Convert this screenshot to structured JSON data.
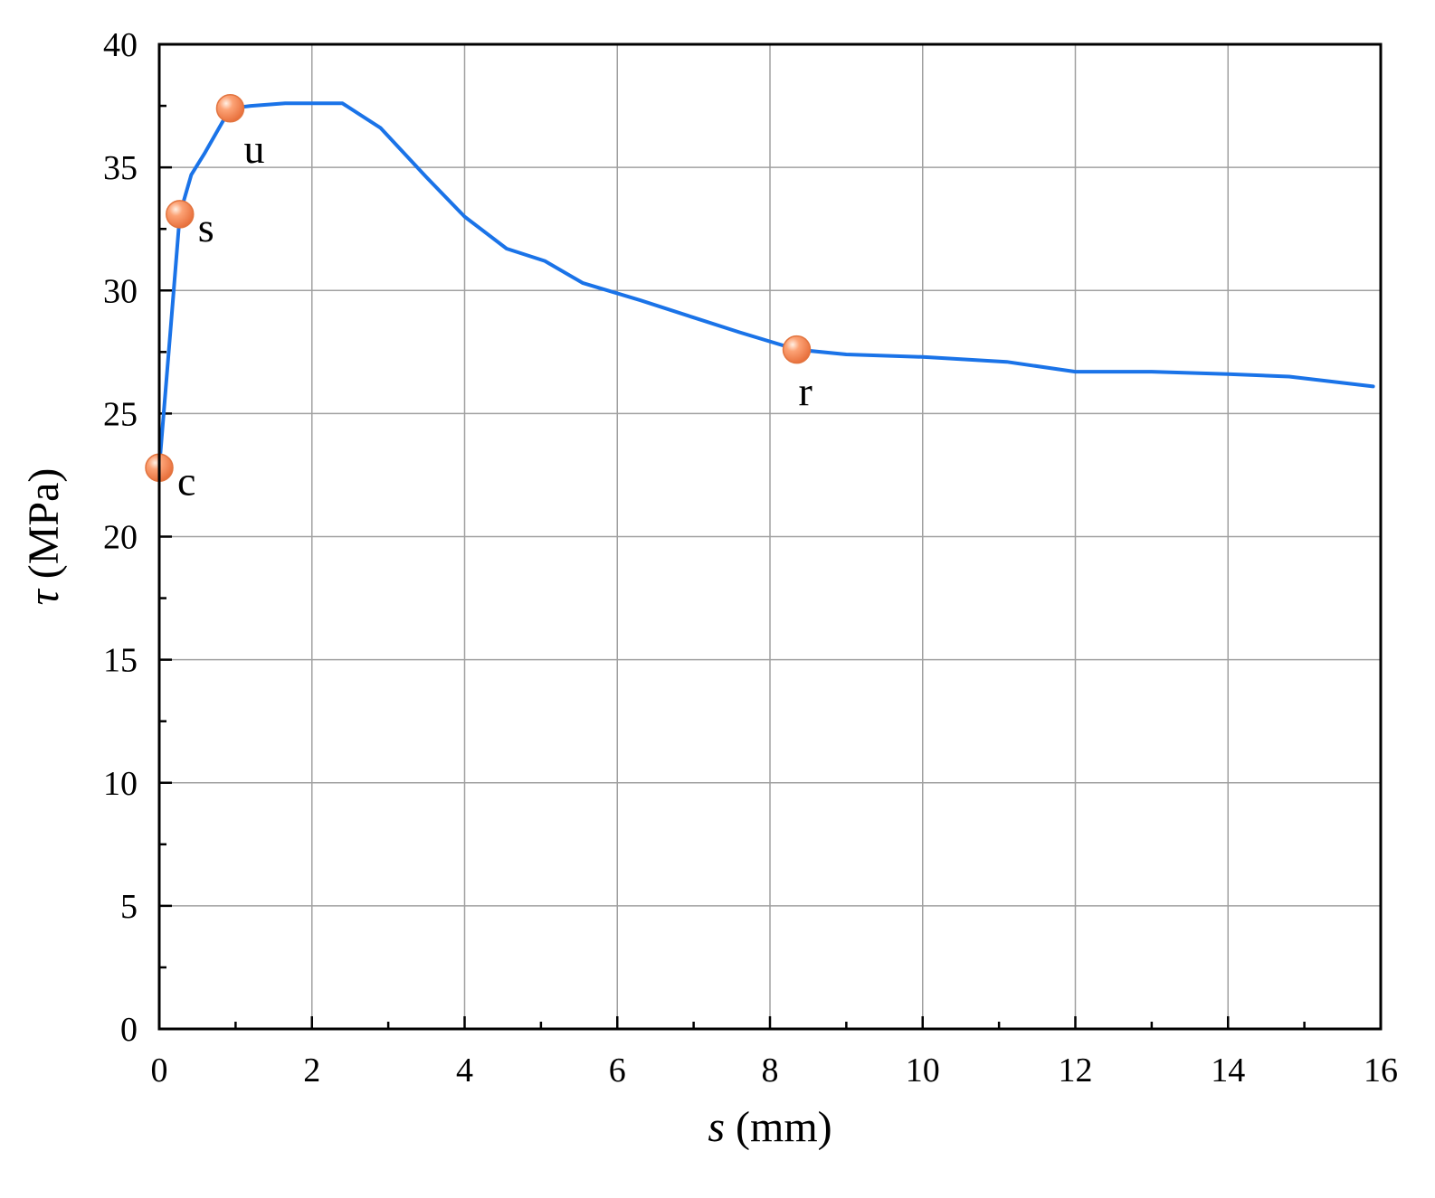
{
  "chart_data": {
    "type": "line",
    "xlabel": {
      "symbol": "s",
      "unit": " (mm)"
    },
    "ylabel": {
      "symbol": "τ",
      "unit": " (MPa)"
    },
    "xlim": [
      0,
      16
    ],
    "ylim": [
      0,
      40
    ],
    "x_ticks": [
      0,
      2,
      4,
      6,
      8,
      10,
      12,
      14,
      16
    ],
    "y_ticks": [
      0,
      5,
      10,
      15,
      20,
      25,
      30,
      35,
      40
    ],
    "x_tick_labels": [
      "0",
      "2",
      "4",
      "6",
      "8",
      "10",
      "12",
      "14",
      "16"
    ],
    "y_tick_labels": [
      "0",
      "5",
      "10",
      "15",
      "20",
      "25",
      "30",
      "35",
      "40"
    ],
    "grid": true,
    "line_color": "#1a73e8",
    "marker_color": "#f4905c",
    "series": [
      {
        "points": [
          [
            0.0,
            22.8
          ],
          [
            0.15,
            28.5
          ],
          [
            0.27,
            33.1
          ],
          [
            0.42,
            34.7
          ],
          [
            0.6,
            35.6
          ],
          [
            0.93,
            37.4
          ],
          [
            1.2,
            37.5
          ],
          [
            1.65,
            37.6
          ],
          [
            2.0,
            37.6
          ],
          [
            2.4,
            37.6
          ],
          [
            2.9,
            36.6
          ],
          [
            3.5,
            34.6
          ],
          [
            4.0,
            33.0
          ],
          [
            4.55,
            31.7
          ],
          [
            5.05,
            31.2
          ],
          [
            5.55,
            30.3
          ],
          [
            6.3,
            29.6
          ],
          [
            7.0,
            28.9
          ],
          [
            7.6,
            28.3
          ],
          [
            8.35,
            27.6
          ],
          [
            9.0,
            27.4
          ],
          [
            10.0,
            27.3
          ],
          [
            11.1,
            27.1
          ],
          [
            12.0,
            26.7
          ],
          [
            13.0,
            26.7
          ],
          [
            14.0,
            26.6
          ],
          [
            14.8,
            26.5
          ],
          [
            15.9,
            26.1
          ]
        ]
      }
    ],
    "annotations": [
      {
        "label": "c",
        "x": 0.0,
        "y": 22.8,
        "label_pos": "right"
      },
      {
        "label": "s",
        "x": 0.27,
        "y": 33.1,
        "label_pos": "right"
      },
      {
        "label": "u",
        "x": 0.93,
        "y": 37.4,
        "label_pos": "below-right"
      },
      {
        "label": "r",
        "x": 8.35,
        "y": 27.6,
        "label_pos": "below"
      }
    ]
  }
}
